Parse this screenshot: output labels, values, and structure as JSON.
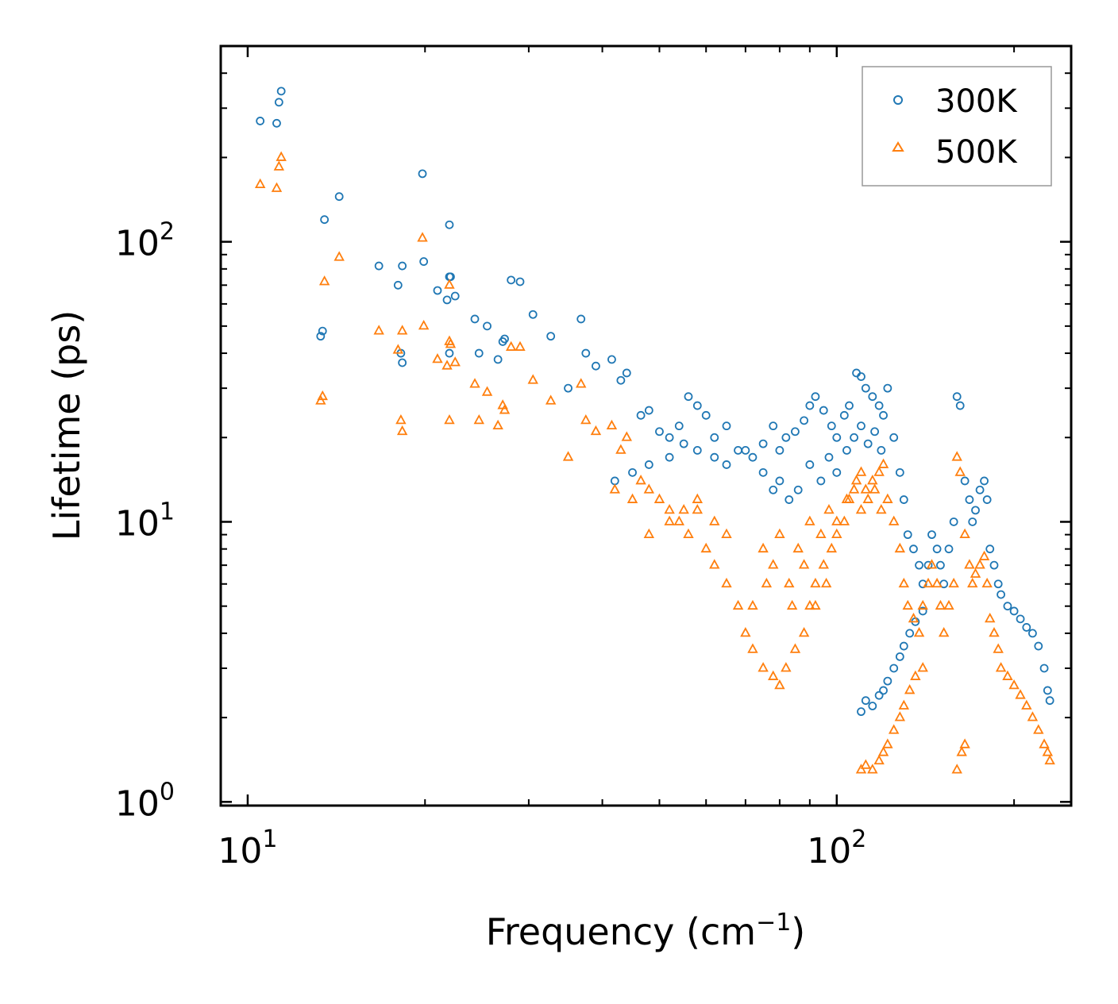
{
  "chart_data": {
    "type": "scatter",
    "xlabel": "Frequency (cm",
    "xlabel_sup": "−1",
    "xlabel_end": ")",
    "ylabel": "Lifetime (ps)",
    "xscale": "log",
    "yscale": "log",
    "xlim": [
      9,
      250
    ],
    "ylim": [
      0.97,
      500
    ],
    "x_ticks": [
      {
        "base": "10",
        "exp": "1",
        "value": 10
      },
      {
        "base": "10",
        "exp": "2",
        "value": 100
      }
    ],
    "y_ticks": [
      {
        "base": "10",
        "exp": "0",
        "value": 1
      },
      {
        "base": "10",
        "exp": "1",
        "value": 10
      },
      {
        "base": "10",
        "exp": "2",
        "value": 100
      }
    ],
    "legend": {
      "position": "top-right"
    },
    "colors": {
      "s300": "#1f77b4",
      "s500": "#ff7f0e"
    },
    "series": [
      {
        "name": "300K",
        "marker": "circle",
        "points": [
          [
            10.5,
            270
          ],
          [
            11.2,
            265
          ],
          [
            11.3,
            315
          ],
          [
            11.4,
            345
          ],
          [
            13.5,
            120
          ],
          [
            13.4,
            48
          ],
          [
            13.3,
            46
          ],
          [
            14.3,
            145
          ],
          [
            16.7,
            82
          ],
          [
            18,
            70
          ],
          [
            18.3,
            82
          ],
          [
            18.2,
            40
          ],
          [
            18.3,
            37
          ],
          [
            19.8,
            175
          ],
          [
            19.9,
            85
          ],
          [
            21,
            67
          ],
          [
            21.8,
            62
          ],
          [
            22,
            75
          ],
          [
            22.1,
            75
          ],
          [
            22,
            115
          ],
          [
            22,
            40
          ],
          [
            22.5,
            64
          ],
          [
            24.3,
            53
          ],
          [
            24.7,
            40
          ],
          [
            25.5,
            50
          ],
          [
            26.6,
            38
          ],
          [
            27.1,
            44
          ],
          [
            27.3,
            45
          ],
          [
            28,
            73
          ],
          [
            29,
            72
          ],
          [
            30.5,
            55
          ],
          [
            32.7,
            46
          ],
          [
            35,
            30
          ],
          [
            36.8,
            53
          ],
          [
            37.5,
            40
          ],
          [
            39,
            36
          ],
          [
            41.5,
            38
          ],
          [
            43,
            32
          ],
          [
            44,
            34
          ],
          [
            46.5,
            24
          ],
          [
            48,
            25
          ],
          [
            50,
            21
          ],
          [
            52,
            20
          ],
          [
            54,
            22
          ],
          [
            56,
            28
          ],
          [
            58,
            26
          ],
          [
            60,
            24
          ],
          [
            62,
            20
          ],
          [
            65,
            22
          ],
          [
            68,
            18
          ],
          [
            70,
            18
          ],
          [
            72,
            17
          ],
          [
            75,
            19
          ],
          [
            78,
            22
          ],
          [
            80,
            18
          ],
          [
            82,
            20
          ],
          [
            85,
            21
          ],
          [
            88,
            23
          ],
          [
            90,
            26
          ],
          [
            92,
            28
          ],
          [
            95,
            25
          ],
          [
            98,
            22
          ],
          [
            100,
            20
          ],
          [
            103,
            24
          ],
          [
            105,
            26
          ],
          [
            108,
            34
          ],
          [
            110,
            33
          ],
          [
            112,
            30
          ],
          [
            115,
            28
          ],
          [
            118,
            26
          ],
          [
            120,
            24
          ],
          [
            122,
            30
          ],
          [
            125,
            20
          ],
          [
            128,
            15
          ],
          [
            130,
            12
          ],
          [
            132,
            9
          ],
          [
            135,
            8
          ],
          [
            138,
            7
          ],
          [
            140,
            6
          ],
          [
            143,
            7
          ],
          [
            145,
            9
          ],
          [
            148,
            8
          ],
          [
            150,
            7
          ],
          [
            152,
            6
          ],
          [
            155,
            8
          ],
          [
            158,
            10
          ],
          [
            160,
            28
          ],
          [
            162,
            26
          ],
          [
            165,
            14
          ],
          [
            168,
            12
          ],
          [
            170,
            10
          ],
          [
            172,
            11
          ],
          [
            175,
            13
          ],
          [
            178,
            14
          ],
          [
            180,
            12
          ],
          [
            182,
            8
          ],
          [
            185,
            7
          ],
          [
            188,
            6
          ],
          [
            190,
            5.5
          ],
          [
            195,
            5
          ],
          [
            200,
            4.8
          ],
          [
            205,
            4.5
          ],
          [
            210,
            4.2
          ],
          [
            215,
            4
          ],
          [
            220,
            3.6
          ],
          [
            225,
            3
          ],
          [
            228,
            2.5
          ],
          [
            230,
            2.3
          ],
          [
            110,
            2.1
          ],
          [
            112,
            2.3
          ],
          [
            115,
            2.2
          ],
          [
            118,
            2.4
          ],
          [
            120,
            2.5
          ],
          [
            122,
            2.7
          ],
          [
            125,
            3
          ],
          [
            128,
            3.3
          ],
          [
            130,
            3.6
          ],
          [
            133,
            4
          ],
          [
            136,
            4.4
          ],
          [
            140,
            4.8
          ],
          [
            75,
            15
          ],
          [
            78,
            13
          ],
          [
            80,
            14
          ],
          [
            83,
            12
          ],
          [
            86,
            13
          ],
          [
            90,
            16
          ],
          [
            94,
            14
          ],
          [
            97,
            17
          ],
          [
            100,
            15
          ],
          [
            104,
            18
          ],
          [
            107,
            20
          ],
          [
            110,
            22
          ],
          [
            113,
            19
          ],
          [
            116,
            21
          ],
          [
            119,
            18
          ],
          [
            65,
            16
          ],
          [
            62,
            17
          ],
          [
            58,
            18
          ],
          [
            55,
            19
          ],
          [
            52,
            17
          ],
          [
            48,
            16
          ],
          [
            45,
            15
          ],
          [
            42,
            14
          ]
        ]
      },
      {
        "name": "500K",
        "marker": "triangle",
        "points": [
          [
            10.5,
            160
          ],
          [
            11.2,
            155
          ],
          [
            11.3,
            185
          ],
          [
            11.4,
            200
          ],
          [
            13.5,
            72
          ],
          [
            13.4,
            28
          ],
          [
            13.3,
            27
          ],
          [
            14.3,
            88
          ],
          [
            16.7,
            48
          ],
          [
            18,
            41
          ],
          [
            18.3,
            48
          ],
          [
            18.2,
            23
          ],
          [
            18.3,
            21
          ],
          [
            19.8,
            103
          ],
          [
            19.9,
            50
          ],
          [
            21,
            38
          ],
          [
            21.8,
            36
          ],
          [
            22,
            44
          ],
          [
            22.1,
            43
          ],
          [
            22,
            70
          ],
          [
            22,
            23
          ],
          [
            22.5,
            37
          ],
          [
            24.3,
            31
          ],
          [
            24.7,
            23
          ],
          [
            25.5,
            29
          ],
          [
            26.6,
            22
          ],
          [
            27.1,
            26
          ],
          [
            27.3,
            25
          ],
          [
            28,
            42
          ],
          [
            29,
            42
          ],
          [
            30.5,
            32
          ],
          [
            32.7,
            27
          ],
          [
            35,
            17
          ],
          [
            36.8,
            31
          ],
          [
            37.5,
            23
          ],
          [
            39,
            21
          ],
          [
            41.5,
            22
          ],
          [
            43,
            18
          ],
          [
            44,
            20
          ],
          [
            46.5,
            14
          ],
          [
            48,
            13
          ],
          [
            50,
            12
          ],
          [
            52,
            11
          ],
          [
            54,
            10
          ],
          [
            56,
            9
          ],
          [
            58,
            11
          ],
          [
            60,
            8
          ],
          [
            62,
            7
          ],
          [
            65,
            6
          ],
          [
            68,
            5
          ],
          [
            70,
            4
          ],
          [
            72,
            3.5
          ],
          [
            75,
            3
          ],
          [
            78,
            2.8
          ],
          [
            80,
            2.6
          ],
          [
            82,
            3
          ],
          [
            85,
            3.5
          ],
          [
            88,
            4
          ],
          [
            90,
            5
          ],
          [
            92,
            6
          ],
          [
            95,
            7
          ],
          [
            98,
            8
          ],
          [
            100,
            9
          ],
          [
            103,
            10
          ],
          [
            105,
            12
          ],
          [
            108,
            14
          ],
          [
            110,
            15
          ],
          [
            112,
            13
          ],
          [
            115,
            14
          ],
          [
            118,
            15
          ],
          [
            120,
            16
          ],
          [
            122,
            12
          ],
          [
            125,
            10
          ],
          [
            128,
            8
          ],
          [
            130,
            6
          ],
          [
            132,
            5
          ],
          [
            135,
            4.5
          ],
          [
            138,
            4
          ],
          [
            140,
            5
          ],
          [
            143,
            6
          ],
          [
            145,
            7
          ],
          [
            148,
            6
          ],
          [
            150,
            5
          ],
          [
            152,
            4
          ],
          [
            155,
            5
          ],
          [
            158,
            6
          ],
          [
            160,
            17
          ],
          [
            162,
            15
          ],
          [
            165,
            9
          ],
          [
            168,
            7
          ],
          [
            170,
            6
          ],
          [
            172,
            6.5
          ],
          [
            175,
            7
          ],
          [
            178,
            7.5
          ],
          [
            180,
            6
          ],
          [
            182,
            4.5
          ],
          [
            185,
            4
          ],
          [
            188,
            3.5
          ],
          [
            190,
            3
          ],
          [
            195,
            2.8
          ],
          [
            200,
            2.6
          ],
          [
            205,
            2.4
          ],
          [
            210,
            2.2
          ],
          [
            215,
            2
          ],
          [
            220,
            1.8
          ],
          [
            225,
            1.6
          ],
          [
            228,
            1.5
          ],
          [
            230,
            1.4
          ],
          [
            110,
            1.3
          ],
          [
            112,
            1.35
          ],
          [
            115,
            1.3
          ],
          [
            118,
            1.4
          ],
          [
            120,
            1.5
          ],
          [
            122,
            1.6
          ],
          [
            125,
            1.8
          ],
          [
            128,
            2
          ],
          [
            130,
            2.2
          ],
          [
            133,
            2.5
          ],
          [
            136,
            2.8
          ],
          [
            140,
            3
          ],
          [
            160,
            1.3
          ],
          [
            163,
            1.5
          ],
          [
            165,
            1.6
          ],
          [
            75,
            8
          ],
          [
            78,
            7
          ],
          [
            80,
            9
          ],
          [
            83,
            6
          ],
          [
            86,
            8
          ],
          [
            90,
            10
          ],
          [
            94,
            9
          ],
          [
            97,
            11
          ],
          [
            100,
            10
          ],
          [
            104,
            12
          ],
          [
            107,
            13
          ],
          [
            110,
            11
          ],
          [
            113,
            12
          ],
          [
            116,
            13
          ],
          [
            119,
            11
          ],
          [
            65,
            9
          ],
          [
            62,
            10
          ],
          [
            58,
            12
          ],
          [
            55,
            11
          ],
          [
            52,
            10
          ],
          [
            48,
            9
          ],
          [
            45,
            12
          ],
          [
            42,
            13
          ],
          [
            72,
            5
          ],
          [
            76,
            6
          ],
          [
            84,
            5
          ],
          [
            88,
            7
          ],
          [
            92,
            5
          ],
          [
            96,
            6
          ]
        ]
      }
    ]
  }
}
